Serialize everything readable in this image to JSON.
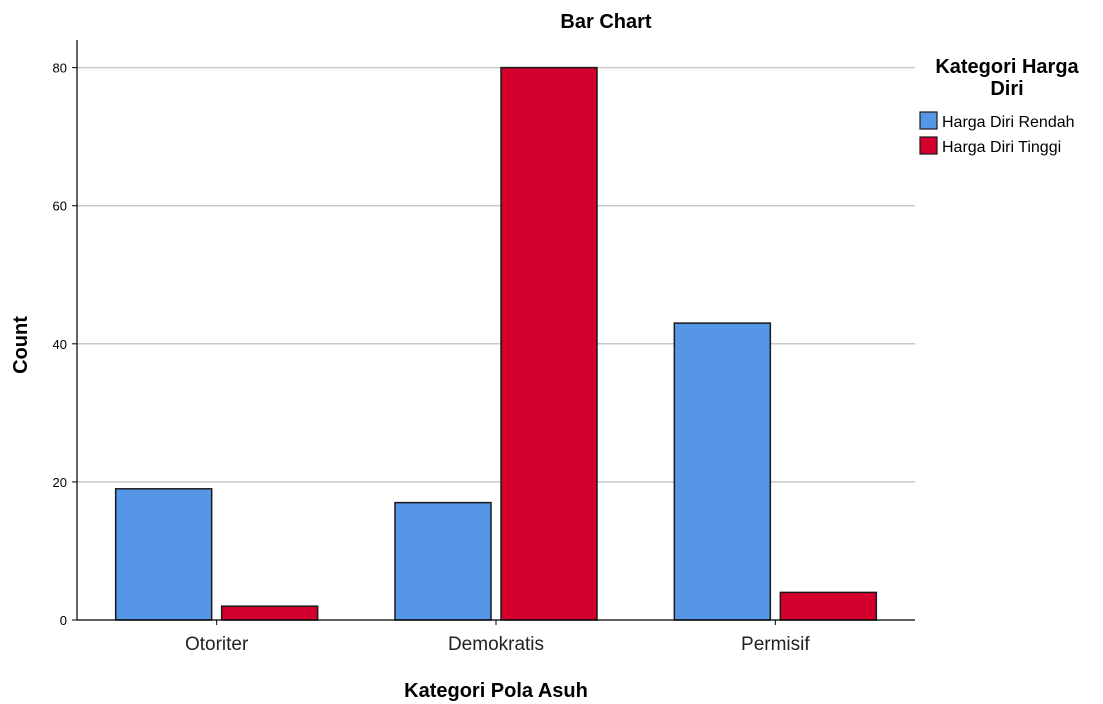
{
  "chart_data": {
    "type": "bar",
    "title": "Bar Chart",
    "xlabel": "Kategori Pola Asuh",
    "ylabel": "Count",
    "categories": [
      "Otoriter",
      "Demokratis",
      "Permisif"
    ],
    "series": [
      {
        "name": "Harga Diri Rendah",
        "values": [
          19,
          17,
          43
        ],
        "color": "#5596E6"
      },
      {
        "name": "Harga Diri Tinggi",
        "values": [
          2,
          80,
          4
        ],
        "color": "#D3002D"
      }
    ],
    "ylim": [
      0,
      84
    ],
    "yticks": [
      0,
      20,
      40,
      60,
      80
    ],
    "grid": true,
    "legend": {
      "title_lines": [
        "Kategori Harga",
        "Diri"
      ],
      "position": "top-right"
    }
  }
}
